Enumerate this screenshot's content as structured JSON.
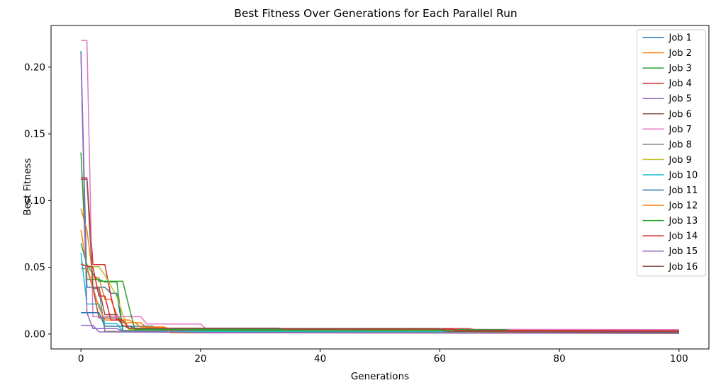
{
  "figure": {
    "background": "#ffffff",
    "spine_color": "#000000",
    "text_color": "#000000"
  },
  "chart_data": {
    "type": "line",
    "title": "Best Fitness Over Generations for Each Parallel Run",
    "xlabel": "Generations",
    "ylabel": "Best Fitness",
    "xlim": [
      -5,
      105
    ],
    "ylim": [
      -0.0112,
      0.2312
    ],
    "grid": false,
    "legend_position": "upper right",
    "legend_border_color": "#cccccc",
    "x_tick_values": [
      0,
      20,
      40,
      60,
      80,
      100
    ],
    "x_tick_labels": [
      "0",
      "20",
      "40",
      "60",
      "80",
      "100"
    ],
    "y_tick_values": [
      0.0,
      0.05,
      0.1,
      0.15,
      0.2
    ],
    "y_tick_labels": [
      "0.00",
      "0.05",
      "0.10",
      "0.15",
      "0.20"
    ],
    "series": [
      {
        "name": "Job 1",
        "color": "#1f77b4",
        "points": [
          [
            0,
            0.212
          ],
          [
            1,
            0.035
          ],
          [
            4,
            0.035
          ],
          [
            5,
            0.0305
          ],
          [
            6,
            0.0305
          ],
          [
            7,
            0.0026
          ],
          [
            60,
            0.0024
          ],
          [
            100,
            0.0012
          ]
        ]
      },
      {
        "name": "Job 2",
        "color": "#ff7f0e",
        "points": [
          [
            0,
            0.094
          ],
          [
            1,
            0.078
          ],
          [
            2,
            0.0425
          ],
          [
            3,
            0.0425
          ],
          [
            4,
            0.026
          ],
          [
            5,
            0.026
          ],
          [
            6,
            0.0145
          ],
          [
            7,
            0.0084
          ],
          [
            10,
            0.0084
          ],
          [
            11,
            0.005
          ],
          [
            14,
            0.005
          ],
          [
            15,
            0.0037
          ],
          [
            60,
            0.0037
          ],
          [
            61,
            0.0021
          ],
          [
            100,
            0.002
          ]
        ]
      },
      {
        "name": "Job 3",
        "color": "#2ca02c",
        "points": [
          [
            0,
            0.136
          ],
          [
            1,
            0.041
          ],
          [
            3,
            0.041
          ],
          [
            4,
            0.039
          ],
          [
            6,
            0.039
          ],
          [
            7,
            0.0026
          ],
          [
            72,
            0.0026
          ],
          [
            73,
            0.0022
          ],
          [
            100,
            0.0019
          ]
        ]
      },
      {
        "name": "Job 4",
        "color": "#d62728",
        "points": [
          [
            0,
            0.117
          ],
          [
            1,
            0.117
          ],
          [
            2,
            0.052
          ],
          [
            4,
            0.052
          ],
          [
            5,
            0.0285
          ],
          [
            6,
            0.0105
          ],
          [
            7,
            0.0105
          ],
          [
            8,
            0.004
          ],
          [
            65,
            0.004
          ],
          [
            66,
            0.0032
          ],
          [
            100,
            0.0028
          ]
        ]
      },
      {
        "name": "Job 5",
        "color": "#9467bd",
        "points": [
          [
            0,
            0.0065
          ],
          [
            2,
            0.0065
          ],
          [
            3,
            0.0016
          ],
          [
            20,
            0.0012
          ],
          [
            100,
            0.0005
          ]
        ]
      },
      {
        "name": "Job 6",
        "color": "#8c564b",
        "points": [
          [
            0,
            0.0525
          ],
          [
            1,
            0.0505
          ],
          [
            2,
            0.035
          ],
          [
            3,
            0.035
          ],
          [
            4,
            0.0145
          ],
          [
            6,
            0.0145
          ],
          [
            7,
            0.006
          ],
          [
            8,
            0.006
          ],
          [
            9,
            0.0042
          ],
          [
            20,
            0.002
          ],
          [
            100,
            0.0013
          ]
        ]
      },
      {
        "name": "Job 7",
        "color": "#e377c2",
        "points": [
          [
            0,
            0.22
          ],
          [
            1,
            0.22
          ],
          [
            2,
            0.013
          ],
          [
            10,
            0.013
          ],
          [
            11,
            0.0075
          ],
          [
            20,
            0.0075
          ],
          [
            21,
            0.0037
          ],
          [
            100,
            0.0033
          ]
        ]
      },
      {
        "name": "Job 8",
        "color": "#7f7f7f",
        "points": [
          [
            0,
            0.049
          ],
          [
            1,
            0.049
          ],
          [
            2,
            0.034
          ],
          [
            3,
            0.034
          ],
          [
            4,
            0.002
          ],
          [
            100,
            0.0008
          ]
        ]
      },
      {
        "name": "Job 9",
        "color": "#bcbd22",
        "points": [
          [
            0,
            0.053
          ],
          [
            1,
            0.0505
          ],
          [
            3,
            0.0505
          ],
          [
            4,
            0.044
          ],
          [
            5,
            0.036
          ],
          [
            6,
            0.028
          ],
          [
            7,
            0.0145
          ],
          [
            8,
            0.0035
          ],
          [
            60,
            0.003
          ],
          [
            100,
            0.0015
          ]
        ]
      },
      {
        "name": "Job 10",
        "color": "#17becf",
        "points": [
          [
            0,
            0.061
          ],
          [
            1,
            0.0225
          ],
          [
            3,
            0.0225
          ],
          [
            4,
            0.0078
          ],
          [
            6,
            0.0078
          ],
          [
            7,
            0.002
          ],
          [
            100,
            0.0016
          ]
        ]
      },
      {
        "name": "Job 11",
        "color": "#1f77b4",
        "points": [
          [
            0,
            0.016
          ],
          [
            3,
            0.016
          ],
          [
            4,
            0.0058
          ],
          [
            12,
            0.0058
          ],
          [
            13,
            0.0035
          ],
          [
            60,
            0.0035
          ],
          [
            61,
            0.0022
          ],
          [
            100,
            0.0018
          ]
        ]
      },
      {
        "name": "Job 12",
        "color": "#ff7f0e",
        "points": [
          [
            0,
            0.078
          ],
          [
            1,
            0.05
          ],
          [
            2,
            0.035
          ],
          [
            3,
            0.02
          ],
          [
            4,
            0.0105
          ],
          [
            8,
            0.0105
          ],
          [
            9,
            0.0085
          ],
          [
            10,
            0.0053
          ],
          [
            14,
            0.0053
          ],
          [
            15,
            0.0009
          ],
          [
            100,
            0.0007
          ]
        ]
      },
      {
        "name": "Job 13",
        "color": "#2ca02c",
        "points": [
          [
            0,
            0.068
          ],
          [
            1,
            0.052
          ],
          [
            2,
            0.045
          ],
          [
            3,
            0.0395
          ],
          [
            7,
            0.0395
          ],
          [
            8,
            0.021
          ],
          [
            9,
            0.0035
          ],
          [
            71,
            0.0032
          ],
          [
            72,
            0.0024
          ],
          [
            100,
            0.0021
          ]
        ]
      },
      {
        "name": "Job 14",
        "color": "#d62728",
        "points": [
          [
            0,
            0.052
          ],
          [
            2,
            0.05
          ],
          [
            3,
            0.0285
          ],
          [
            4,
            0.0285
          ],
          [
            5,
            0.0105
          ],
          [
            7,
            0.0105
          ],
          [
            8,
            0.0044
          ],
          [
            33,
            0.0044
          ],
          [
            34,
            0.0037
          ],
          [
            62,
            0.0037
          ],
          [
            63,
            0.0026
          ],
          [
            100,
            0.002
          ]
        ]
      },
      {
        "name": "Job 15",
        "color": "#9467bd",
        "points": [
          [
            0,
            0.21
          ],
          [
            1,
            0.016
          ],
          [
            2,
            0.004
          ],
          [
            6,
            0.004
          ],
          [
            7,
            0.0022
          ],
          [
            20,
            0.001
          ],
          [
            100,
            0.0004
          ]
        ]
      },
      {
        "name": "Job 16",
        "color": "#8c564b",
        "points": [
          [
            0,
            0.116
          ],
          [
            1,
            0.116
          ],
          [
            2,
            0.035
          ],
          [
            3,
            0.012
          ],
          [
            6,
            0.012
          ],
          [
            7,
            0.0065
          ],
          [
            8,
            0.0042
          ],
          [
            60,
            0.0042
          ],
          [
            61,
            0.002
          ],
          [
            100,
            0.0009
          ]
        ]
      }
    ]
  }
}
